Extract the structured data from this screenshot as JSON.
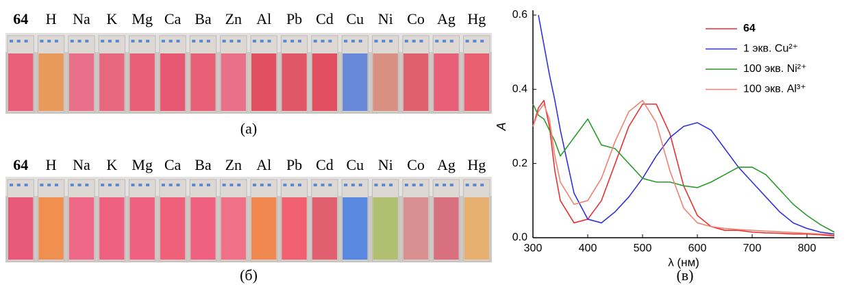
{
  "photo_a": {
    "labels": [
      "64",
      "H",
      "Na",
      "K",
      "Mg",
      "Ca",
      "Ba",
      "Zn",
      "Al",
      "Pb",
      "Cd",
      "Cu",
      "Ni",
      "Co",
      "Ag",
      "Hg"
    ],
    "colors": [
      "#e8607a",
      "#e89a5a",
      "#e8708a",
      "#e86880",
      "#e86078",
      "#e85870",
      "#e86078",
      "#e87088",
      "#e05060",
      "#e05868",
      "#e05060",
      "#6888d8",
      "#d89080",
      "#e06070",
      "#e86078",
      "#e86070"
    ],
    "caption": "(а)"
  },
  "photo_b": {
    "labels": [
      "64",
      "H",
      "Na",
      "K",
      "Mg",
      "Ca",
      "Ba",
      "Zn",
      "Al",
      "Pb",
      "Cd",
      "Cu",
      "Ni",
      "Co",
      "Ag",
      "Hg"
    ],
    "colors": [
      "#e85878",
      "#f09050",
      "#f06888",
      "#f06080",
      "#f06080",
      "#f06078",
      "#f06080",
      "#f07088",
      "#f08850",
      "#f06070",
      "#e06070",
      "#5888e0",
      "#b0c070",
      "#d89090",
      "#d87080",
      "#e8b070"
    ],
    "caption": "(б)"
  },
  "chart_data": {
    "type": "line",
    "xlabel": "λ (нм)",
    "ylabel": "A",
    "caption": "(в)",
    "x": [
      300,
      310,
      320,
      330,
      340,
      350,
      375,
      400,
      425,
      450,
      475,
      500,
      525,
      550,
      575,
      600,
      625,
      650,
      675,
      700,
      725,
      750,
      775,
      800,
      825,
      850
    ],
    "series": [
      {
        "name": "64",
        "color": "#e83030",
        "values": [
          0.3,
          0.35,
          0.37,
          0.3,
          0.18,
          0.1,
          0.04,
          0.05,
          0.1,
          0.2,
          0.3,
          0.36,
          0.36,
          0.28,
          0.14,
          0.06,
          0.03,
          0.02,
          0.02,
          0.015,
          0.013,
          0.012,
          0.01,
          0.01,
          0.008,
          0.005
        ]
      },
      {
        "name": "1 экв. Cu²⁺",
        "color": "#3030e0",
        "values": [
          null,
          0.6,
          0.52,
          0.44,
          0.37,
          0.29,
          0.12,
          0.05,
          0.04,
          0.07,
          0.11,
          0.16,
          0.22,
          0.27,
          0.3,
          0.31,
          0.29,
          0.24,
          0.19,
          0.15,
          0.11,
          0.07,
          0.04,
          0.025,
          0.015,
          0.01
        ]
      },
      {
        "name": "100 экв. Ni²⁺",
        "color": "#2a9a2a",
        "values": [
          0.36,
          0.33,
          0.32,
          0.29,
          0.26,
          0.22,
          0.27,
          0.32,
          0.25,
          0.24,
          0.2,
          0.16,
          0.15,
          0.15,
          0.14,
          0.135,
          0.15,
          0.17,
          0.19,
          0.19,
          0.17,
          0.13,
          0.09,
          0.06,
          0.035,
          0.015
        ]
      },
      {
        "name": "100 экв. Al³⁺",
        "color": "#f08070",
        "values": [
          0.3,
          0.34,
          0.36,
          0.32,
          0.22,
          0.15,
          0.09,
          0.1,
          0.16,
          0.26,
          0.34,
          0.37,
          0.31,
          0.18,
          0.08,
          0.04,
          0.03,
          0.025,
          0.022,
          0.02,
          0.018,
          0.016,
          0.014,
          0.012,
          0.01,
          0.008
        ]
      }
    ],
    "xlim": [
      300,
      850
    ],
    "ylim": [
      0,
      0.6
    ],
    "xticks": [
      300,
      400,
      500,
      600,
      700,
      800
    ],
    "yticks": [
      {
        "value": 0,
        "label": "0.0"
      },
      0.2,
      0.4,
      0.6
    ]
  }
}
